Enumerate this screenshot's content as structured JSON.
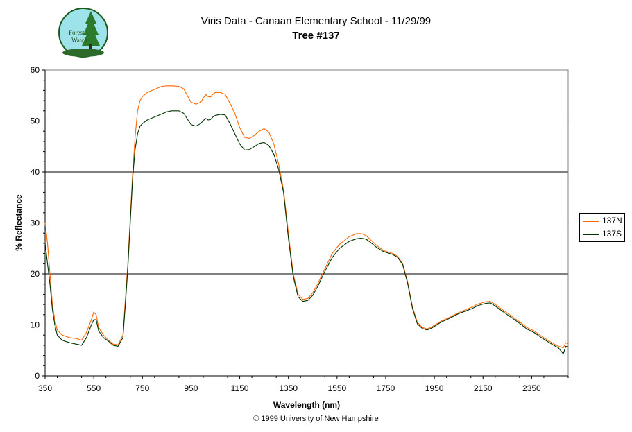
{
  "logo": {
    "text_line1": "Forest",
    "text_line2": "Watch"
  },
  "title_line1": "Viris Data - Canaan Elementary School - 11/29/99",
  "title_line2": "Tree #137",
  "footer": "© 1999 University of New Hampshire",
  "colors": {
    "n": "#ff6600",
    "s": "#003300",
    "grid": "#000000"
  },
  "chart_data": {
    "type": "line",
    "xlabel": "Wavelength (nm)",
    "ylabel": "% Reflectance",
    "xlim": [
      350,
      2500
    ],
    "ylim": [
      0,
      60
    ],
    "x_ticks": [
      350,
      550,
      750,
      950,
      1150,
      1350,
      1550,
      1750,
      1950,
      2150,
      2350
    ],
    "y_ticks": [
      0,
      10,
      20,
      30,
      40,
      50,
      60
    ],
    "grid": "horizontal major",
    "legend": "right",
    "series": [
      {
        "name": "137N",
        "color": "#ff6600",
        "x": [
          350,
          355,
          360,
          370,
          380,
          390,
          400,
          420,
          450,
          480,
          500,
          520,
          540,
          550,
          560,
          570,
          590,
          610,
          630,
          650,
          670,
          680,
          690,
          700,
          710,
          720,
          730,
          740,
          750,
          770,
          800,
          830,
          850,
          870,
          900,
          920,
          940,
          950,
          970,
          990,
          1000,
          1010,
          1020,
          1030,
          1040,
          1050,
          1070,
          1090,
          1110,
          1130,
          1150,
          1170,
          1190,
          1210,
          1230,
          1250,
          1270,
          1290,
          1310,
          1330,
          1350,
          1370,
          1390,
          1410,
          1430,
          1450,
          1470,
          1500,
          1530,
          1560,
          1600,
          1630,
          1650,
          1670,
          1690,
          1710,
          1740,
          1760,
          1780,
          1800,
          1820,
          1840,
          1860,
          1880,
          1900,
          1920,
          1940,
          1960,
          1980,
          2000,
          2050,
          2100,
          2130,
          2160,
          2180,
          2200,
          2220,
          2250,
          2280,
          2300,
          2330,
          2360,
          2390,
          2420,
          2440,
          2460,
          2480,
          2490,
          2500
        ],
        "y": [
          30,
          28,
          26,
          20,
          14,
          11,
          9,
          8,
          7.5,
          7.3,
          7,
          8.5,
          11,
          12.5,
          12,
          9.5,
          8,
          7,
          6.2,
          6.1,
          8,
          15,
          22,
          31,
          40,
          47,
          52,
          54,
          54.8,
          55.6,
          56.2,
          56.8,
          56.9,
          56.9,
          56.8,
          56.3,
          54.5,
          53.7,
          53.3,
          53.7,
          54.5,
          55.2,
          54.8,
          54.7,
          55.3,
          55.6,
          55.6,
          55.2,
          53.5,
          51.5,
          48.7,
          46.8,
          46.6,
          47.2,
          48,
          48.5,
          47.8,
          45.5,
          41.5,
          36.5,
          28,
          20,
          16,
          15,
          15.2,
          16.3,
          18,
          21,
          24,
          25.8,
          27.3,
          27.9,
          27.9,
          27.5,
          26.6,
          25.7,
          24.6,
          24.3,
          24,
          23.4,
          22,
          18.5,
          13.5,
          10.5,
          9.5,
          9.2,
          9.6,
          10.2,
          10.8,
          11.2,
          12.4,
          13.4,
          14.1,
          14.5,
          14.6,
          14,
          13.3,
          12.3,
          11.3,
          10.6,
          9.5,
          8.8,
          7.8,
          6.9,
          6.3,
          5.8,
          5.5,
          6.5,
          6.3
        ]
      },
      {
        "name": "137S",
        "color": "#003300",
        "x": [
          350,
          355,
          360,
          370,
          380,
          390,
          400,
          420,
          450,
          480,
          500,
          520,
          540,
          550,
          560,
          570,
          590,
          610,
          630,
          650,
          670,
          680,
          690,
          700,
          710,
          720,
          730,
          740,
          750,
          770,
          800,
          830,
          850,
          870,
          900,
          920,
          940,
          950,
          970,
          990,
          1000,
          1010,
          1020,
          1030,
          1040,
          1050,
          1070,
          1090,
          1110,
          1130,
          1150,
          1170,
          1190,
          1210,
          1230,
          1250,
          1270,
          1290,
          1310,
          1330,
          1350,
          1370,
          1390,
          1410,
          1430,
          1450,
          1470,
          1500,
          1530,
          1560,
          1600,
          1630,
          1650,
          1670,
          1690,
          1710,
          1740,
          1760,
          1780,
          1800,
          1820,
          1840,
          1860,
          1880,
          1900,
          1920,
          1940,
          1960,
          1980,
          2000,
          2050,
          2100,
          2130,
          2160,
          2180,
          2200,
          2220,
          2250,
          2280,
          2300,
          2330,
          2360,
          2390,
          2420,
          2440,
          2460,
          2480,
          2490,
          2500
        ],
        "y": [
          26,
          24,
          22,
          18,
          13,
          10,
          8,
          7,
          6.5,
          6.2,
          6,
          7.5,
          10,
          11,
          11,
          8.8,
          7.5,
          6.8,
          6,
          5.8,
          7.5,
          14,
          21,
          30,
          39,
          44.5,
          47.5,
          49,
          49.5,
          50.2,
          50.8,
          51.4,
          51.8,
          52,
          52,
          51.5,
          50,
          49.3,
          49,
          49.5,
          50.1,
          50.5,
          50.2,
          50.3,
          50.8,
          51.1,
          51.3,
          51.2,
          49.5,
          47.5,
          45.5,
          44.3,
          44.4,
          45,
          45.6,
          45.8,
          45.2,
          43.5,
          40.5,
          36,
          27,
          19.5,
          15.5,
          14.6,
          14.8,
          15.8,
          17.5,
          20.5,
          23.2,
          25,
          26.4,
          26.9,
          27,
          26.8,
          26.1,
          25.3,
          24.4,
          24.1,
          23.8,
          23.2,
          21.8,
          18.2,
          13.2,
          10.2,
          9.3,
          9,
          9.4,
          10,
          10.6,
          11,
          12.2,
          13.1,
          13.8,
          14.2,
          14.3,
          13.7,
          13,
          12,
          11,
          10.3,
          9.2,
          8.5,
          7.5,
          6.6,
          6,
          5.5,
          4.3,
          5.8,
          5.7
        ]
      }
    ]
  }
}
